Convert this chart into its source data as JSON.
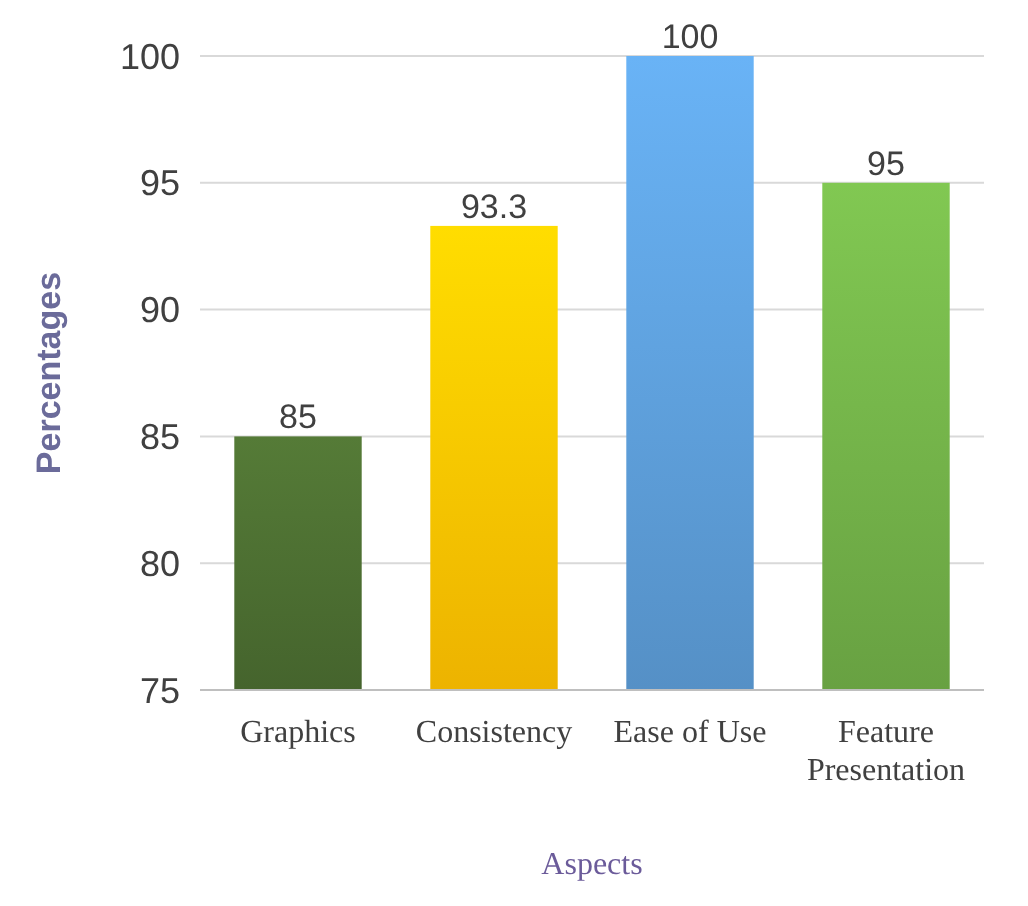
{
  "chart_data": {
    "type": "bar",
    "xlabel": "Aspects",
    "ylabel": "Percentages",
    "categories": [
      "Graphics",
      "Consistency",
      "Ease of Use",
      "Feature Presentation"
    ],
    "values": [
      85,
      93.3,
      100,
      95
    ],
    "colors": [
      "#4a6b30",
      "#ffc000",
      "#5b9bd5",
      "#70ad47"
    ],
    "ylim": [
      75,
      100
    ],
    "yticks": [
      75,
      80,
      85,
      90,
      95,
      100
    ],
    "grid": "y",
    "data_labels": true
  }
}
